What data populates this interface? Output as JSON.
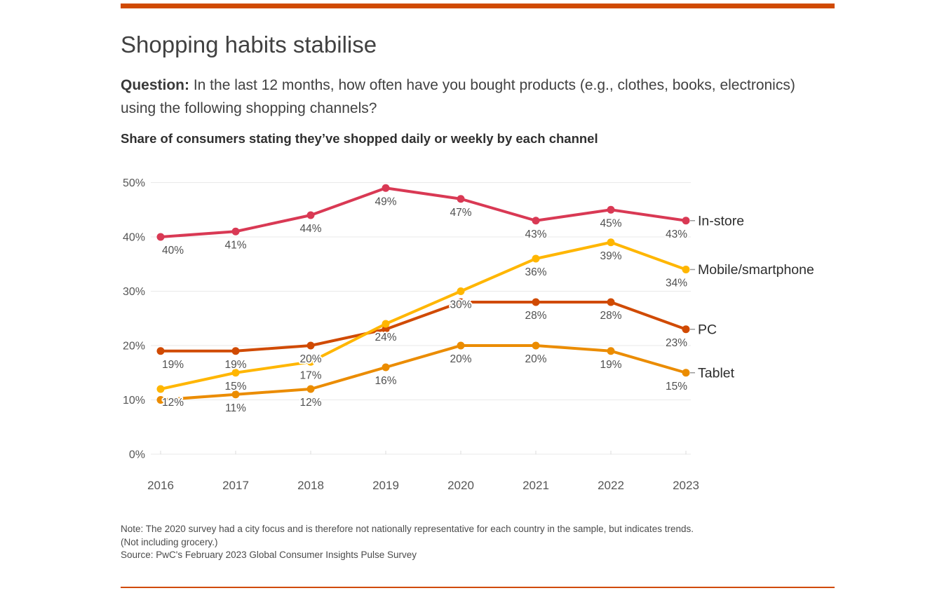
{
  "page": {
    "title": "Shopping habits stabilise",
    "question_label": "Question:",
    "question_text": " In the last 12 months, how often have you bought products (e.g., clothes, books, electronics) using the following shopping channels?",
    "subtitle": "Share of consumers stating they’ve shopped daily or weekly by each channel",
    "notes": [
      "Note: The 2020 survey had a city focus and is therefore not nationally representative for each country in the sample, but indicates trends.",
      "(Not including grocery.)",
      "Source: PwC's February 2023 Global Consumer Insights Pulse Survey"
    ],
    "accent_color": "#d04a02"
  },
  "chart_data": {
    "type": "line",
    "x": [
      "2016",
      "2017",
      "2018",
      "2019",
      "2020",
      "2021",
      "2022",
      "2023"
    ],
    "series": [
      {
        "name": "In-store",
        "color": "#d93954",
        "values": [
          40,
          41,
          44,
          49,
          47,
          43,
          45,
          43
        ],
        "labels": [
          "40%",
          "41%",
          "44%",
          "49%",
          "47%",
          "43%",
          "45%",
          "43%"
        ]
      },
      {
        "name": "Mobile/smartphone",
        "color": "#ffb600",
        "values": [
          12,
          15,
          17,
          24,
          30,
          36,
          39,
          34
        ],
        "labels": [
          "12%",
          "15%",
          "17%",
          "24%",
          "30%",
          "36%",
          "39%",
          "34%"
        ]
      },
      {
        "name": "PC",
        "color": "#d04a02",
        "values": [
          19,
          19,
          20,
          23,
          28,
          28,
          28,
          23
        ],
        "labels": [
          "19%",
          "19%",
          "20%",
          "",
          "",
          "28%",
          "28%",
          "23%"
        ]
      },
      {
        "name": "Tablet",
        "color": "#eb8c00",
        "values": [
          10,
          11,
          12,
          16,
          20,
          20,
          19,
          15
        ],
        "labels": [
          "",
          "11%",
          "12%",
          "16%",
          "20%",
          "20%",
          "19%",
          "15%"
        ]
      }
    ],
    "y_ticks": [
      "0%",
      "10%",
      "20%",
      "30%",
      "40%",
      "50%"
    ],
    "ylim": [
      0,
      50
    ],
    "grid": true,
    "legend_position": "right-of-line-ends",
    "label_color": "#505050",
    "axis_color": "#565656",
    "legend_text_color": "#2d2d2d",
    "grid_color": "#e9e9e9"
  }
}
